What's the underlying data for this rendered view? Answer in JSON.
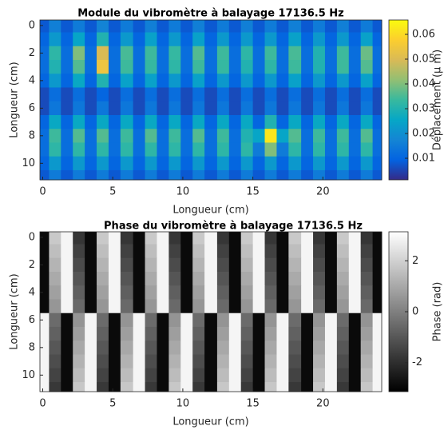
{
  "chart_data": [
    {
      "type": "heatmap",
      "title": "Module du vibromètre à balayage 17136.5 Hz",
      "xlabel": "Longueur (cm)",
      "ylabel": "Longueur (cm)",
      "x": [
        0,
        0.9,
        1.7,
        2.6,
        3.4,
        4.3,
        5.1,
        6,
        6.9,
        7.7,
        8.6,
        9.4,
        10.3,
        11.1,
        12,
        12.9,
        13.7,
        14.6,
        15.4,
        16.3,
        17.1,
        18,
        18.9,
        19.7,
        20.6,
        21.4,
        22.3,
        23.1,
        24
      ],
      "y": [
        0,
        1,
        2,
        3,
        4,
        5,
        6,
        7,
        8,
        9,
        10,
        11
      ],
      "z": [
        [
          0.008,
          0.016,
          0.008,
          0.015,
          0.008,
          0.017,
          0.008,
          0.015,
          0.008,
          0.016,
          0.008,
          0.015,
          0.008,
          0.016,
          0.008,
          0.015,
          0.008,
          0.016,
          0.008,
          0.015,
          0.008,
          0.016,
          0.008,
          0.015,
          0.008,
          0.016,
          0.008,
          0.015,
          0.008
        ],
        [
          0.01,
          0.022,
          0.01,
          0.025,
          0.01,
          0.03,
          0.01,
          0.022,
          0.01,
          0.024,
          0.01,
          0.022,
          0.01,
          0.024,
          0.01,
          0.022,
          0.01,
          0.022,
          0.01,
          0.022,
          0.01,
          0.024,
          0.01,
          0.022,
          0.01,
          0.022,
          0.01,
          0.024,
          0.01
        ],
        [
          0.012,
          0.032,
          0.012,
          0.04,
          0.012,
          0.05,
          0.012,
          0.035,
          0.012,
          0.034,
          0.012,
          0.033,
          0.012,
          0.036,
          0.012,
          0.034,
          0.012,
          0.032,
          0.012,
          0.034,
          0.012,
          0.035,
          0.012,
          0.03,
          0.012,
          0.034,
          0.012,
          0.038,
          0.012
        ],
        [
          0.012,
          0.03,
          0.012,
          0.036,
          0.012,
          0.054,
          0.012,
          0.034,
          0.012,
          0.033,
          0.012,
          0.032,
          0.012,
          0.034,
          0.012,
          0.033,
          0.012,
          0.03,
          0.012,
          0.032,
          0.012,
          0.034,
          0.012,
          0.03,
          0.012,
          0.034,
          0.012,
          0.036,
          0.012
        ],
        [
          0.01,
          0.022,
          0.01,
          0.026,
          0.01,
          0.03,
          0.01,
          0.024,
          0.01,
          0.024,
          0.01,
          0.022,
          0.01,
          0.024,
          0.01,
          0.022,
          0.01,
          0.022,
          0.01,
          0.022,
          0.01,
          0.024,
          0.01,
          0.022,
          0.01,
          0.022,
          0.01,
          0.024,
          0.01
        ],
        [
          0.006,
          0.012,
          0.006,
          0.012,
          0.006,
          0.01,
          0.006,
          0.012,
          0.006,
          0.012,
          0.006,
          0.012,
          0.006,
          0.012,
          0.006,
          0.012,
          0.006,
          0.012,
          0.006,
          0.012,
          0.006,
          0.012,
          0.006,
          0.012,
          0.006,
          0.012,
          0.006,
          0.012,
          0.006
        ],
        [
          0.006,
          0.014,
          0.006,
          0.014,
          0.006,
          0.014,
          0.006,
          0.014,
          0.006,
          0.014,
          0.006,
          0.014,
          0.006,
          0.014,
          0.006,
          0.014,
          0.006,
          0.014,
          0.006,
          0.014,
          0.006,
          0.014,
          0.006,
          0.014,
          0.006,
          0.014,
          0.006,
          0.014,
          0.006
        ],
        [
          0.01,
          0.026,
          0.01,
          0.026,
          0.01,
          0.026,
          0.01,
          0.026,
          0.01,
          0.026,
          0.01,
          0.026,
          0.01,
          0.026,
          0.01,
          0.026,
          0.01,
          0.026,
          0.01,
          0.03,
          0.01,
          0.026,
          0.01,
          0.026,
          0.01,
          0.026,
          0.01,
          0.026,
          0.01
        ],
        [
          0.012,
          0.034,
          0.012,
          0.036,
          0.012,
          0.036,
          0.012,
          0.034,
          0.012,
          0.036,
          0.012,
          0.034,
          0.012,
          0.036,
          0.012,
          0.034,
          0.012,
          0.03,
          0.025,
          0.062,
          0.025,
          0.036,
          0.012,
          0.034,
          0.012,
          0.034,
          0.012,
          0.036,
          0.012
        ],
        [
          0.012,
          0.032,
          0.012,
          0.032,
          0.012,
          0.032,
          0.012,
          0.032,
          0.012,
          0.032,
          0.012,
          0.032,
          0.012,
          0.032,
          0.012,
          0.032,
          0.012,
          0.032,
          0.015,
          0.04,
          0.015,
          0.032,
          0.012,
          0.032,
          0.012,
          0.032,
          0.012,
          0.032,
          0.012
        ],
        [
          0.01,
          0.022,
          0.01,
          0.022,
          0.01,
          0.022,
          0.01,
          0.022,
          0.01,
          0.022,
          0.01,
          0.022,
          0.01,
          0.022,
          0.01,
          0.022,
          0.01,
          0.022,
          0.01,
          0.022,
          0.01,
          0.022,
          0.01,
          0.022,
          0.01,
          0.022,
          0.01,
          0.022,
          0.01
        ],
        [
          0.008,
          0.015,
          0.008,
          0.015,
          0.008,
          0.015,
          0.008,
          0.015,
          0.008,
          0.015,
          0.008,
          0.015,
          0.008,
          0.015,
          0.008,
          0.015,
          0.008,
          0.015,
          0.008,
          0.015,
          0.008,
          0.015,
          0.008,
          0.015,
          0.008,
          0.015,
          0.008,
          0.015,
          0.008
        ]
      ],
      "xlim": [
        -0.2,
        24.2
      ],
      "ylim": [
        -0.4,
        11.2
      ],
      "xticks": [
        0,
        5,
        10,
        15,
        20
      ],
      "yticks": [
        0,
        2,
        4,
        6,
        8,
        10
      ],
      "colorbar": {
        "label": "Déplacement (μ m)",
        "lim": [
          0.0013,
          0.0658
        ],
        "ticks": [
          0.01,
          0.02,
          0.03,
          0.04,
          0.05,
          0.06
        ],
        "colormap": [
          "#352a87",
          "#0363e1",
          "#1485d4",
          "#06a7c6",
          "#38b99e",
          "#92bf73",
          "#d9ba56",
          "#fcce2e",
          "#f9fb0e"
        ]
      }
    },
    {
      "type": "heatmap",
      "title": "Phase du vibromètre à balayage 17136.5 Hz",
      "xlabel": "Longueur (cm)",
      "ylabel": "Longueur (cm)",
      "x": [
        0,
        0.9,
        1.7,
        2.6,
        3.4,
        4.3,
        5.1,
        6,
        6.9,
        7.7,
        8.6,
        9.4,
        10.3,
        11.1,
        12,
        12.9,
        13.7,
        14.6,
        15.4,
        16.3,
        17.1,
        18,
        18.9,
        19.7,
        20.6,
        21.4,
        22.3,
        23.1,
        24
      ],
      "y": [
        0,
        1,
        2,
        3,
        4,
        5,
        6,
        7,
        8,
        9,
        10,
        11
      ],
      "z": [
        [
          -2.9,
          1.8,
          2.9,
          -1.8,
          -2.9,
          1.8,
          2.9,
          -1.8,
          -2.9,
          1.8,
          2.9,
          -1.8,
          -2.9,
          1.8,
          2.9,
          -1.8,
          -2.9,
          1.8,
          2.9,
          -1.8,
          -2.9,
          1.8,
          2.9,
          -1.8,
          -2.9,
          1.8,
          2.9,
          -1.8,
          -2.9
        ],
        [
          -2.9,
          1.55,
          2.9,
          -1.55,
          -2.9,
          1.55,
          2.9,
          -1.55,
          -2.9,
          1.55,
          2.9,
          -1.55,
          -2.9,
          1.55,
          2.9,
          -1.55,
          -2.9,
          1.55,
          2.9,
          -1.55,
          -2.9,
          1.55,
          2.9,
          -1.55,
          -2.9,
          1.55,
          2.9,
          -1.55,
          -2.9
        ],
        [
          -2.9,
          1.3,
          2.9,
          -1.3,
          -2.9,
          1.3,
          2.9,
          -1.3,
          -2.9,
          1.3,
          2.9,
          -1.3,
          -2.9,
          1.3,
          2.9,
          -1.3,
          -2.9,
          1.3,
          2.9,
          -1.3,
          -2.9,
          1.3,
          2.9,
          -1.3,
          -2.9,
          1.3,
          2.9,
          -1.3,
          -2.9
        ],
        [
          -2.9,
          1.05,
          2.9,
          -1.05,
          -2.9,
          1.05,
          2.9,
          -1.05,
          -2.9,
          1.05,
          2.9,
          -1.05,
          -2.9,
          1.05,
          2.9,
          -1.05,
          -2.9,
          1.05,
          2.9,
          -1.05,
          -2.9,
          1.05,
          2.9,
          -1.05,
          -2.9,
          1.05,
          2.9,
          -1.05,
          -2.9
        ],
        [
          -2.9,
          0.8,
          2.9,
          -0.8,
          -2.9,
          0.8,
          2.9,
          -0.8,
          -2.9,
          0.8,
          2.9,
          -0.8,
          -2.9,
          0.8,
          2.9,
          -0.8,
          -2.9,
          0.8,
          2.9,
          -0.8,
          -2.9,
          0.8,
          2.9,
          -0.8,
          -2.9,
          0.8,
          2.9,
          -0.8,
          -2.9
        ],
        [
          -2.9,
          0.55,
          2.9,
          -0.55,
          -2.9,
          0.55,
          2.9,
          -0.55,
          -2.9,
          0.55,
          2.9,
          -0.55,
          -2.9,
          0.55,
          2.9,
          -0.55,
          -2.9,
          0.55,
          2.9,
          -0.55,
          -2.9,
          0.55,
          2.9,
          -0.55,
          -2.9,
          0.55,
          2.9,
          -0.55,
          -2.9
        ],
        [
          2.9,
          -0.5,
          -2.9,
          0.5,
          2.9,
          -0.5,
          -2.9,
          0.5,
          2.9,
          -0.5,
          -2.9,
          0.5,
          2.9,
          -0.5,
          -2.9,
          0.5,
          2.9,
          -0.5,
          -2.9,
          0.5,
          2.9,
          -0.5,
          -2.9,
          0.5,
          2.9,
          -0.5,
          -2.9,
          0.5,
          2.9
        ],
        [
          2.9,
          -0.75,
          -2.9,
          0.75,
          2.9,
          -0.75,
          -2.9,
          0.75,
          2.9,
          -0.75,
          -2.9,
          0.75,
          2.9,
          -0.75,
          -2.9,
          0.75,
          2.9,
          -0.75,
          -2.9,
          0.75,
          2.9,
          -0.75,
          -2.9,
          0.75,
          2.9,
          -0.75,
          -2.9,
          0.75,
          2.9
        ],
        [
          2.9,
          -1,
          -2.9,
          1,
          2.9,
          -1,
          -2.9,
          1,
          2.9,
          -1,
          -2.9,
          1,
          2.9,
          -1,
          -2.9,
          1,
          2.9,
          -1,
          -2.9,
          1,
          2.9,
          -1,
          -2.9,
          1,
          2.9,
          -1,
          -2.9,
          1,
          2.9
        ],
        [
          2.9,
          -1.25,
          -2.9,
          1.25,
          2.9,
          -1.25,
          -2.9,
          1.25,
          2.9,
          -1.25,
          -2.9,
          1.25,
          2.9,
          -1.25,
          -2.9,
          1.25,
          2.9,
          -1.25,
          -2.9,
          1.25,
          2.9,
          -1.25,
          -2.9,
          1.25,
          2.9,
          -1.25,
          -2.9,
          1.25,
          2.9
        ],
        [
          2.9,
          -1.5,
          -2.9,
          1.5,
          2.9,
          -1.5,
          -2.9,
          1.5,
          2.9,
          -1.5,
          -2.9,
          1.5,
          2.9,
          -1.5,
          -2.9,
          1.5,
          2.9,
          -1.5,
          -2.9,
          1.5,
          2.9,
          -1.5,
          -2.9,
          1.5,
          2.9,
          -1.5,
          -2.9,
          1.5,
          2.9
        ],
        [
          2.9,
          -1.75,
          -2.9,
          1.75,
          2.9,
          -1.75,
          -2.9,
          1.75,
          2.9,
          -1.75,
          -2.9,
          1.75,
          2.9,
          -1.75,
          -2.9,
          1.75,
          2.9,
          -1.75,
          -2.9,
          1.75,
          2.9,
          -1.75,
          -2.9,
          1.75,
          2.9,
          -1.75,
          -2.9,
          1.75,
          2.9
        ]
      ],
      "xlim": [
        -0.2,
        24.2
      ],
      "ylim": [
        -0.4,
        11.2
      ],
      "xticks": [
        0,
        5,
        10,
        15,
        20
      ],
      "yticks": [
        0,
        2,
        4,
        6,
        8,
        10
      ],
      "colorbar": {
        "label": "Phase (rad)",
        "lim": [
          -3.14,
          3.14
        ],
        "ticks": [
          -2,
          0,
          2
        ],
        "colormap": [
          "#000000",
          "#ffffff"
        ]
      }
    }
  ]
}
